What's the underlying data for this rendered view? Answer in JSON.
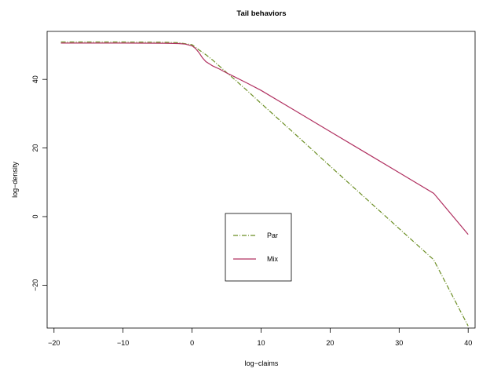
{
  "chart_data": {
    "type": "line",
    "title": "Tail behaviors",
    "xlabel": "log−claims",
    "ylabel": "log−density",
    "xlim": [
      -21,
      41
    ],
    "ylim": [
      -32.5,
      54
    ],
    "xticks": [
      -20,
      -10,
      0,
      10,
      20,
      30,
      40
    ],
    "yticks": [
      -20,
      0,
      20,
      40
    ],
    "xtick_labels": [
      "−20",
      "−10",
      "0",
      "10",
      "20",
      "30",
      "40"
    ],
    "ytick_labels": [
      "−20",
      "0",
      "20",
      "40"
    ],
    "grid": false,
    "legend_position": "center",
    "series": [
      {
        "name": "Par",
        "color": "#6b8e23",
        "style": "dashdot",
        "x": [
          -19,
          -10,
          -4,
          -2,
          0,
          1,
          2,
          3,
          4,
          5,
          6,
          8,
          10,
          15,
          20,
          25,
          30,
          35,
          40
        ],
        "y": [
          50.9,
          50.9,
          50.85,
          50.7,
          50.1,
          48.6,
          47.2,
          45.6,
          43.8,
          42.0,
          40.3,
          36.7,
          33.0,
          23.9,
          14.7,
          5.6,
          -3.5,
          -12.6,
          -31.9
        ]
      },
      {
        "name": "Mix",
        "color": "#b03060",
        "style": "solid",
        "x": [
          -19,
          -10,
          -4,
          -2,
          -1,
          0,
          0.5,
          1,
          1.5,
          2,
          3,
          4,
          5,
          6,
          8,
          10,
          15,
          20,
          25,
          30,
          35,
          40
        ],
        "y": [
          50.6,
          50.6,
          50.55,
          50.45,
          50.3,
          49.8,
          49.0,
          47.8,
          46.3,
          45.2,
          43.9,
          43.0,
          41.9,
          40.9,
          38.9,
          36.8,
          30.8,
          24.8,
          18.8,
          12.8,
          6.8,
          -5.2
        ]
      }
    ]
  }
}
